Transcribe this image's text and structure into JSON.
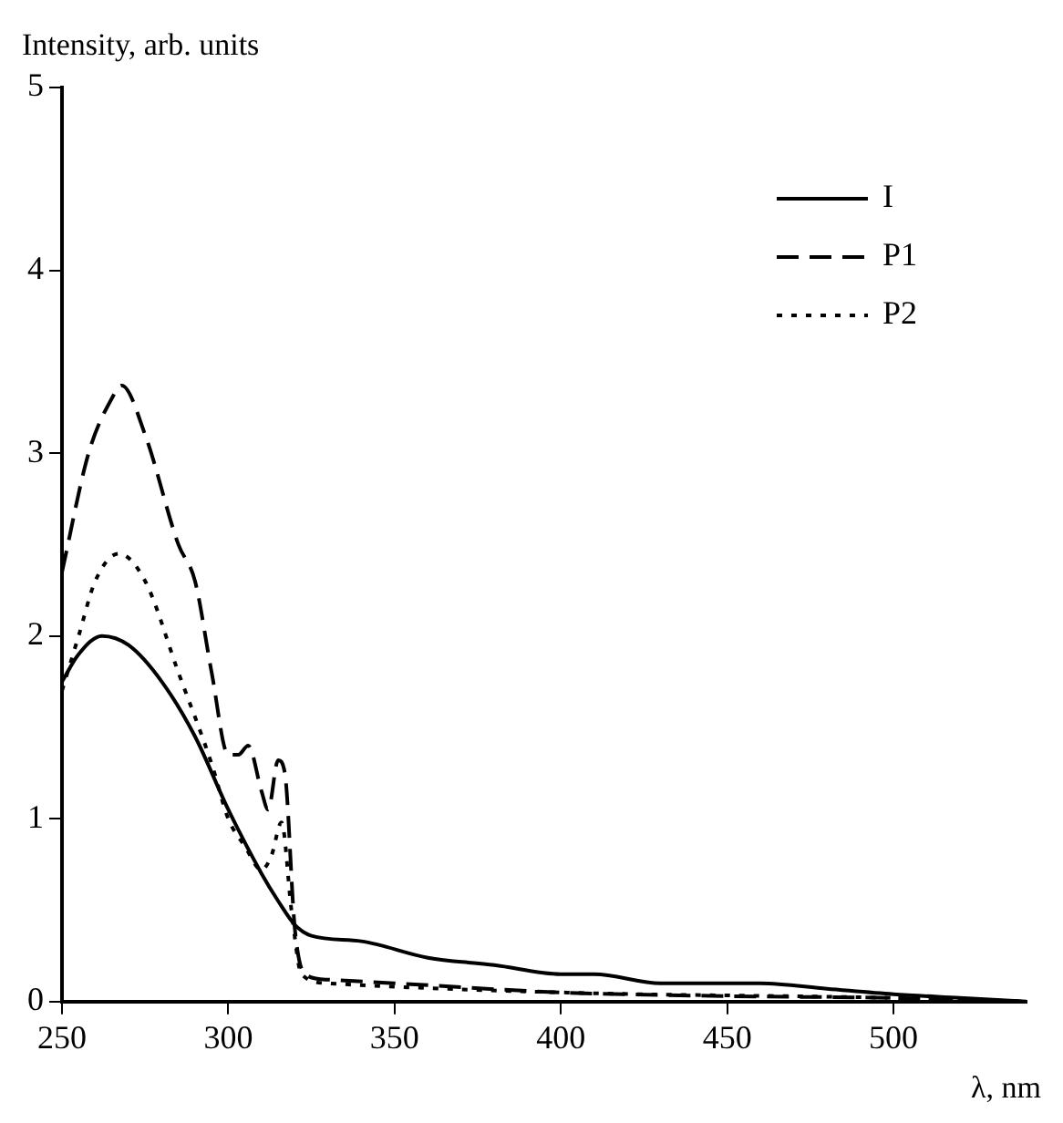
{
  "chart_data": {
    "type": "line",
    "xlabel": "λ, nm",
    "ylabel": "Intensity, arb. units",
    "xlim": [
      250,
      540
    ],
    "xticks": [
      250,
      300,
      350,
      400,
      450,
      500
    ],
    "ylim": [
      0,
      5
    ],
    "yticks": [
      0,
      1,
      2,
      3,
      4,
      5
    ],
    "grid": false,
    "legend": "top right",
    "marker": "none",
    "series": [
      {
        "name": "I",
        "color": "#000000",
        "line_style": "solid",
        "x": [
          250,
          255,
          262,
          270,
          280,
          290,
          300,
          310,
          315,
          320,
          325,
          340,
          360,
          380,
          400,
          410,
          430,
          460,
          480,
          500,
          520,
          540
        ],
        "values": [
          1.75,
          1.9,
          2.0,
          1.95,
          1.75,
          1.45,
          1.05,
          0.7,
          0.55,
          0.42,
          0.36,
          0.33,
          0.24,
          0.2,
          0.15,
          0.15,
          0.1,
          0.1,
          0.07,
          0.04,
          0.02,
          0.0
        ]
      },
      {
        "name": "P1",
        "color": "#000000",
        "line_style": "dashed",
        "x": [
          250,
          258,
          265,
          268,
          275,
          285,
          290,
          295,
          300,
          303,
          306,
          310,
          312,
          315,
          317,
          320,
          323,
          330,
          350,
          400,
          450,
          500,
          540
        ],
        "values": [
          2.35,
          3.0,
          3.3,
          3.37,
          3.1,
          2.5,
          2.3,
          1.8,
          1.35,
          1.35,
          1.4,
          1.15,
          1.05,
          1.32,
          1.25,
          0.4,
          0.15,
          0.12,
          0.1,
          0.05,
          0.03,
          0.02,
          0.0
        ]
      },
      {
        "name": "P2",
        "color": "#000000",
        "line_style": "dotted",
        "x": [
          250,
          255,
          260,
          267,
          275,
          285,
          295,
          300,
          305,
          310,
          313,
          316,
          319,
          322,
          330,
          400,
          500,
          540
        ],
        "values": [
          1.7,
          2.0,
          2.3,
          2.45,
          2.3,
          1.8,
          1.3,
          1.0,
          0.85,
          0.72,
          0.8,
          0.98,
          0.5,
          0.15,
          0.1,
          0.05,
          0.02,
          0.0
        ]
      }
    ]
  }
}
